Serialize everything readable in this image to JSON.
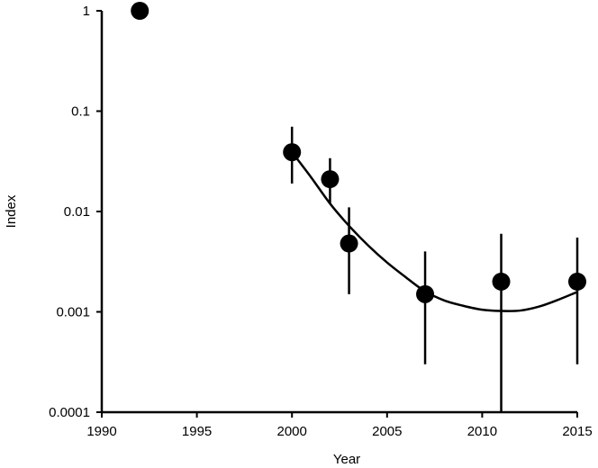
{
  "chart_data": {
    "type": "scatter",
    "xlabel": "Year",
    "ylabel": "Index",
    "xlim": [
      1990,
      2015
    ],
    "ylim": [
      0.0001,
      1
    ],
    "y_scale": "log",
    "grid": false,
    "x_ticks": [
      1990,
      1995,
      2000,
      2005,
      2010,
      2015
    ],
    "x_tick_labels": [
      "1990",
      "1995",
      "2000",
      "2005",
      "2010",
      "2015"
    ],
    "y_ticks": [
      0.0001,
      0.001,
      0.01,
      0.1,
      1
    ],
    "y_tick_labels": [
      "0.0001",
      "0.001",
      "0.01",
      "0.1",
      "1"
    ],
    "series": [
      {
        "type": "scatter",
        "points": [
          {
            "x": 1992,
            "y": 1.0
          },
          {
            "x": 2000,
            "y": 0.039,
            "err_low": 0.019,
            "err_high": 0.07
          },
          {
            "x": 2002,
            "y": 0.021,
            "err_low": 0.012,
            "err_high": 0.034
          },
          {
            "x": 2003,
            "y": 0.0048,
            "err_low": 0.0015,
            "err_high": 0.011
          },
          {
            "x": 2007,
            "y": 0.0015,
            "err_low": 0.0003,
            "err_high": 0.004
          },
          {
            "x": 2011,
            "y": 0.002,
            "err_low": 0.0001,
            "err_high": 0.006
          },
          {
            "x": 2015,
            "y": 0.002,
            "err_low": 0.0003,
            "err_high": 0.0055
          }
        ]
      },
      {
        "type": "line",
        "points": [
          {
            "x": 2000,
            "y": 0.039
          },
          {
            "x": 2001,
            "y": 0.022
          },
          {
            "x": 2002,
            "y": 0.012
          },
          {
            "x": 2003,
            "y": 0.0072
          },
          {
            "x": 2004,
            "y": 0.0046
          },
          {
            "x": 2005,
            "y": 0.0031
          },
          {
            "x": 2006,
            "y": 0.0022
          },
          {
            "x": 2007,
            "y": 0.0016
          },
          {
            "x": 2008,
            "y": 0.0013
          },
          {
            "x": 2009,
            "y": 0.00115
          },
          {
            "x": 2010,
            "y": 0.00105
          },
          {
            "x": 2011,
            "y": 0.00102
          },
          {
            "x": 2012,
            "y": 0.00103
          },
          {
            "x": 2013,
            "y": 0.00113
          },
          {
            "x": 2014,
            "y": 0.00132
          },
          {
            "x": 2015,
            "y": 0.00158
          }
        ]
      }
    ],
    "colors": {
      "marker": "#000000",
      "line": "#000000",
      "background": "#ffffff"
    }
  }
}
